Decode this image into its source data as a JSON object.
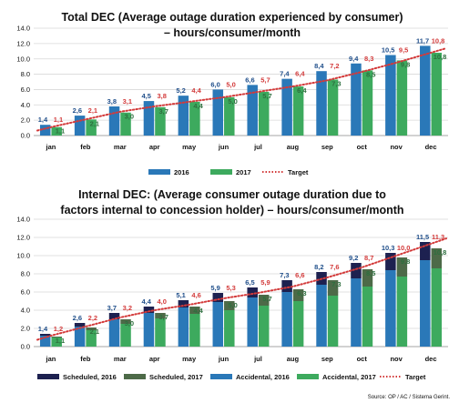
{
  "colors": {
    "blue": "#2a78b8",
    "green": "#3daa5e",
    "navy": "#1d2150",
    "darkgreen": "#4d6a48",
    "target": "#d33a3a",
    "grid": "#d8d8d8"
  },
  "source": "Source: OP / AC / Sistema Gerint.",
  "chart_data": [
    {
      "type": "bar",
      "title_lines": [
        "Total DEC (Average outage duration experienced by consumer)",
        "– hours/consumer/month"
      ],
      "categories": [
        "jan",
        "feb",
        "mar",
        "apr",
        "may",
        "jun",
        "jul",
        "aug",
        "sep",
        "oct",
        "nov",
        "dec"
      ],
      "ylim": [
        0,
        14
      ],
      "yticks": [
        "0.0",
        "2.0",
        "4.0",
        "6.0",
        "8.0",
        "10.0",
        "12.0",
        "14.0"
      ],
      "grid": true,
      "legend_position": "bottom",
      "series": [
        {
          "name": "2016",
          "color": "#2a78b8",
          "values": [
            1.4,
            2.6,
            3.8,
            4.5,
            5.2,
            6.0,
            6.6,
            7.4,
            8.4,
            9.4,
            10.5,
            11.7
          ],
          "labels": [
            "1,4",
            "2,6",
            "3,8",
            "4,5",
            "5,2",
            "6,0",
            "6,6",
            "7,4",
            "8,4",
            "9,4",
            "10,5",
            "11,7"
          ]
        },
        {
          "name": "2017",
          "color": "#3daa5e",
          "values": [
            1.1,
            2.1,
            3.0,
            3.7,
            4.4,
            5.0,
            5.7,
            6.4,
            7.3,
            8.5,
            9.8,
            10.8
          ],
          "labels": [
            "1,1",
            "2,1",
            "3,0",
            "3,7",
            "4,4",
            "5,0",
            "5,7",
            "6,4",
            "7,3",
            "8,5",
            "9,8",
            "10,8"
          ]
        }
      ],
      "target": {
        "name": "Target",
        "values": [
          1.1,
          2.1,
          3.1,
          3.8,
          4.4,
          5.0,
          5.7,
          6.4,
          7.2,
          8.3,
          9.5,
          10.8
        ],
        "labels": [
          "1,1",
          "2,1",
          "3,1",
          "3,8",
          "4,4",
          "5,0",
          "5,7",
          "6,4",
          "7,2",
          "8,3",
          "9,5",
          "10,8"
        ]
      },
      "legend": [
        "2016",
        "2017",
        "Target"
      ]
    },
    {
      "type": "bar",
      "stacked": true,
      "title_lines": [
        "Internal DEC: (Average consumer outage duration due to",
        "factors internal to concession holder) – hours/consumer/month"
      ],
      "categories": [
        "jan",
        "feb",
        "mar",
        "apr",
        "may",
        "jun",
        "jul",
        "aug",
        "sep",
        "oct",
        "nov",
        "dec"
      ],
      "ylim": [
        0,
        14
      ],
      "yticks": [
        "0.0",
        "2.0",
        "4.0",
        "6.0",
        "8.0",
        "10.0",
        "12.0",
        "14.0"
      ],
      "grid": true,
      "legend_position": "bottom",
      "bars_2016": {
        "accidental": [
          1.2,
          2.2,
          3.0,
          3.7,
          4.3,
          4.9,
          5.4,
          6.0,
          6.8,
          7.5,
          8.4,
          9.5
        ],
        "scheduled": [
          0.2,
          0.4,
          0.7,
          0.7,
          0.8,
          1.0,
          1.1,
          1.3,
          1.4,
          1.7,
          1.9,
          2.0
        ],
        "totals": [
          1.4,
          2.6,
          3.7,
          4.4,
          5.1,
          5.9,
          6.5,
          7.3,
          8.2,
          9.2,
          10.3,
          11.5
        ],
        "labels": [
          "1,4",
          "2,6",
          "3,7",
          "4,4",
          "5,1",
          "5,9",
          "6,5",
          "7,3",
          "8,2",
          "9,2",
          "10,3",
          "11,5"
        ]
      },
      "bars_2017": {
        "accidental": [
          1.0,
          1.8,
          2.5,
          3.1,
          3.6,
          4.0,
          4.5,
          5.0,
          5.6,
          6.6,
          7.7,
          8.6
        ],
        "scheduled": [
          0.1,
          0.3,
          0.5,
          0.6,
          0.8,
          1.0,
          1.2,
          1.3,
          1.7,
          1.9,
          2.1,
          2.2
        ],
        "totals": [
          1.1,
          2.1,
          3.0,
          3.7,
          4.4,
          5.0,
          5.7,
          6.3,
          7.3,
          8.5,
          9.8,
          10.8
        ],
        "labels": [
          "1,1",
          "2,1",
          "3,0",
          "3,7",
          "4,4",
          "5,0",
          "5,7",
          "6,3",
          "7,3",
          "8,5",
          "9,8",
          "10,8"
        ]
      },
      "target": {
        "name": "Target",
        "values": [
          1.2,
          2.2,
          3.2,
          4.0,
          4.6,
          5.3,
          5.9,
          6.6,
          7.6,
          8.7,
          10.0,
          11.3
        ],
        "labels": [
          "1,2",
          "2,2",
          "3,2",
          "4,0",
          "4,6",
          "5,3",
          "5,9",
          "6,6",
          "7,6",
          "8,7",
          "10,0",
          "11,3"
        ]
      },
      "legend": [
        "Scheduled, 2016",
        "Scheduled, 2017",
        "Accidental, 2016",
        "Accidental, 2017",
        "Target"
      ]
    }
  ]
}
